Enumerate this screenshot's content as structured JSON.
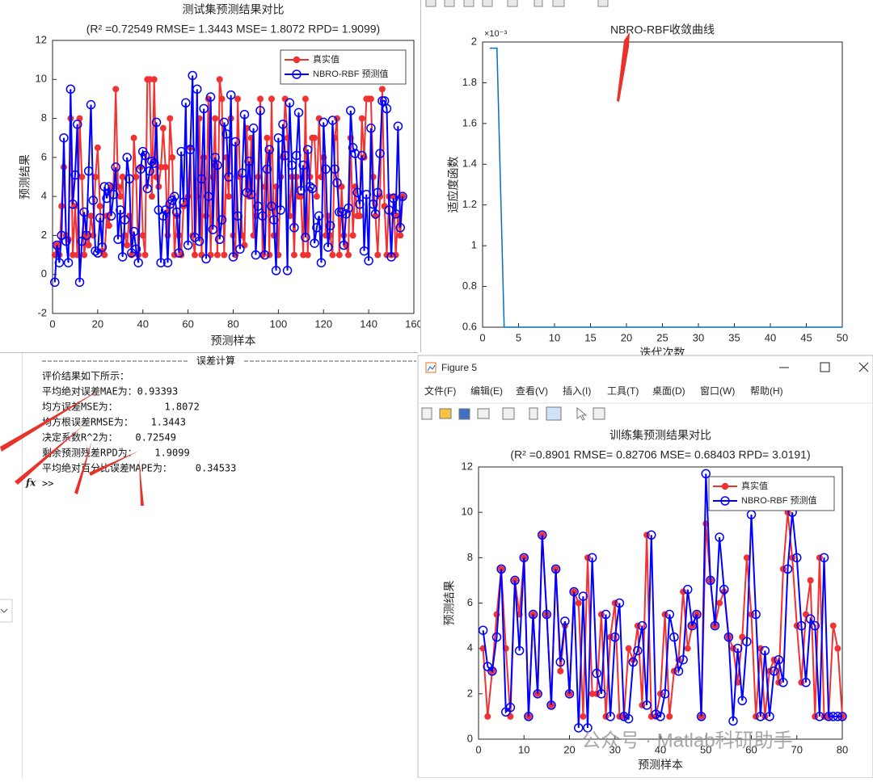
{
  "chart_data": [
    {
      "type": "line",
      "title": "测试集预测结果对比",
      "subtitle": "(R² =0.72549 RMSE= 1.3443 MSE= 1.8072 RPD= 1.9099)",
      "xlabel": "预测样本",
      "ylabel": "预测结果",
      "legend": "northeast",
      "xlim": [
        0,
        160
      ],
      "xticks": [
        0,
        20,
        40,
        60,
        80,
        100,
        120,
        140,
        160
      ],
      "ylim": [
        -2,
        12
      ],
      "yticks": [
        -2,
        0,
        2,
        4,
        6,
        8,
        10,
        12
      ],
      "x": [
        1,
        2,
        3,
        4,
        5,
        6,
        7,
        8,
        9,
        10,
        11,
        12,
        13,
        14,
        15,
        16,
        17,
        18,
        19,
        20,
        21,
        22,
        23,
        24,
        25,
        26,
        27,
        28,
        29,
        30,
        31,
        32,
        33,
        34,
        35,
        36,
        37,
        38,
        39,
        40,
        41,
        42,
        43,
        44,
        45,
        46,
        47,
        48,
        49,
        50,
        51,
        52,
        53,
        54,
        55,
        56,
        57,
        58,
        59,
        60,
        61,
        62,
        63,
        64,
        65,
        66,
        67,
        68,
        69,
        70,
        71,
        72,
        73,
        74,
        75,
        76,
        77,
        78,
        79,
        80,
        81,
        82,
        83,
        84,
        85,
        86,
        87,
        88,
        89,
        90,
        91,
        92,
        93,
        94,
        95,
        96,
        97,
        98,
        99,
        100,
        101,
        102,
        103,
        104,
        105,
        106,
        107,
        108,
        109,
        110,
        111,
        112,
        113,
        114,
        115,
        116,
        117,
        118,
        119,
        120,
        121,
        122,
        123,
        124,
        125,
        126,
        127,
        128,
        129,
        130,
        131,
        132,
        133,
        134,
        135,
        136,
        137,
        138,
        139,
        140,
        141,
        142,
        143,
        144,
        145,
        146,
        147,
        148,
        149,
        150,
        151,
        152,
        153,
        154,
        155
      ],
      "series": [
        {
          "name": "真实值",
          "color": "#f03232",
          "marker": "filled",
          "values": [
            1,
            1.5,
            1,
            3.5,
            5.5,
            2,
            1.8,
            8,
            1,
            3.5,
            1,
            8,
            5,
            1,
            2,
            1.5,
            3,
            2,
            5,
            6.5,
            3.5,
            1.2,
            1,
            3,
            2.5,
            4.5,
            4.5,
            9.5,
            4.5,
            4,
            5,
            2,
            1.5,
            3,
            1,
            7,
            5,
            1,
            5.5,
            2,
            1,
            10,
            10,
            4,
            10,
            5,
            4.5,
            5.5,
            7.5,
            5.5,
            2,
            8,
            6,
            1,
            3,
            2,
            1,
            3.5,
            3.7,
            4,
            6.5,
            2,
            1,
            4,
            8,
            1,
            6,
            3,
            9,
            1,
            5,
            8,
            1,
            10,
            9,
            1,
            6,
            4,
            8,
            2,
            1,
            9,
            5,
            2,
            1.5,
            7.5,
            4,
            7,
            2,
            3,
            5,
            9,
            1,
            4.5,
            7,
            1,
            9,
            2,
            4.5,
            1,
            5,
            6,
            9,
            7,
            3,
            5,
            1,
            5,
            4,
            4,
            1,
            9,
            1,
            5,
            7,
            7,
            4,
            8,
            5,
            6,
            2,
            3,
            2,
            1,
            7,
            8,
            1,
            4.5,
            2,
            1.5,
            1,
            7,
            2,
            4.5,
            3,
            3,
            8,
            6,
            9,
            9,
            9,
            5,
            3,
            1,
            4,
            9.5,
            3.5,
            1,
            4,
            1,
            4,
            1,
            3,
            2,
            4
          ]
        },
        {
          "name": "NBRO-RBF 预测值",
          "color": "#0000ff",
          "marker": "open",
          "values": [
            -0.4,
            1.5,
            0.6,
            2,
            7,
            1.7,
            0.6,
            9.5,
            3.6,
            5.1,
            7.7,
            -0.4,
            1.7,
            3.2,
            2,
            5.3,
            8.7,
            3.8,
            1.2,
            1.1,
            2.9,
            1.4,
            4.5,
            3.9,
            4.5,
            3,
            4.1,
            5.5,
            1.8,
            3.3,
            0.9,
            2.8,
            6,
            4.9,
            1.1,
            2.2,
            1.3,
            0.6,
            5.4,
            6.3,
            6.1,
            4.4,
            5.3,
            5.8,
            5.7,
            7.8,
            3.3,
            0.6,
            3,
            3.3,
            0.6,
            3.6,
            3.8,
            4,
            3.2,
            1.1,
            6.3,
            3.7,
            8.8,
            1.5,
            6.4,
            10.2,
            1.9,
            9.5,
            1.7,
            4.9,
            8.5,
            0.8,
            4,
            9.1,
            2.3,
            6,
            5.6,
            1.8,
            2.8,
            7.8,
            7.2,
            5,
            9.2,
            0.9,
            6.8,
            3,
            1.3,
            5.2,
            8.2,
            4.2,
            5.8,
            4.1,
            7.5,
            1,
            3.5,
            8.4,
            3,
            1,
            5.4,
            6.4,
            3.5,
            2.8,
            0.2,
            7,
            3.3,
            7.7,
            6.1,
            0.2,
            8.8,
            5.6,
            2.4,
            6.1,
            8.3,
            4.3,
            5.6,
            1.9,
            6.4,
            4.5,
            4.4,
            1.6,
            2.4,
            3,
            0.6,
            7.8,
            5.4,
            1.4,
            2.5,
            7.9,
            5.4,
            4.7,
            3.2,
            3.2,
            1.5,
            3.1,
            3.4,
            8.4,
            6.5,
            6.2,
            4.2,
            3.6,
            6.1,
            1.2,
            4.1,
            0.7,
            7.5,
            3.6,
            3.1,
            4.2,
            6.2,
            8.9,
            8.9,
            8.5,
            3.3,
            0.9,
            3.9,
            3.1,
            7.6,
            2.4,
            4
          ]
        }
      ]
    },
    {
      "type": "line",
      "title": "NBRO-RBF收敛曲线",
      "xlabel": "迭代次数",
      "ylabel": "适应度函数",
      "y_exponent": "×10⁻³",
      "xlim": [
        0,
        50
      ],
      "xticks": [
        0,
        5,
        10,
        15,
        20,
        25,
        30,
        35,
        40,
        45,
        50
      ],
      "ylim": [
        0.6,
        2
      ],
      "yticks": [
        0.6,
        0.8,
        1,
        1.2,
        1.4,
        1.6,
        1.8,
        2
      ],
      "x": [
        1,
        2,
        3,
        4,
        5,
        6,
        7,
        8,
        9,
        10,
        11,
        12,
        13,
        14,
        15,
        16,
        17,
        18,
        19,
        20,
        21,
        22,
        23,
        24,
        25,
        26,
        27,
        28,
        29,
        30,
        31,
        32,
        33,
        34,
        35,
        36,
        37,
        38,
        39,
        40,
        41,
        42,
        43,
        44,
        45,
        46,
        47,
        48,
        49,
        50
      ],
      "series": [
        {
          "color": "#0072bd",
          "marker": "none",
          "values": [
            1.97,
            1.97,
            0.6,
            0.6,
            0.6,
            0.6,
            0.6,
            0.6,
            0.6,
            0.6,
            0.6,
            0.6,
            0.6,
            0.6,
            0.6,
            0.6,
            0.6,
            0.6,
            0.6,
            0.6,
            0.6,
            0.6,
            0.6,
            0.6,
            0.6,
            0.6,
            0.6,
            0.6,
            0.6,
            0.6,
            0.6,
            0.6,
            0.6,
            0.6,
            0.6,
            0.6,
            0.6,
            0.6,
            0.6,
            0.6,
            0.6,
            0.6,
            0.6,
            0.6,
            0.6,
            0.6,
            0.6,
            0.6,
            0.6,
            0.6
          ]
        }
      ]
    },
    {
      "type": "line",
      "title": "训练集预测结果对比",
      "subtitle": "(R² =0.8901 RMSE= 0.82706 MSE= 0.68403 RPD= 3.0191)",
      "xlabel": "预测样本",
      "ylabel": "预测结果",
      "legend": "northeast",
      "xlim": [
        0,
        80
      ],
      "xticks": [
        0,
        10,
        20,
        30,
        40,
        50,
        60,
        70,
        80
      ],
      "ylim": [
        0,
        12
      ],
      "yticks": [
        0,
        2,
        4,
        6,
        8,
        10,
        12
      ],
      "x": [
        1,
        2,
        3,
        4,
        5,
        6,
        7,
        8,
        9,
        10,
        11,
        12,
        13,
        14,
        15,
        16,
        17,
        18,
        19,
        20,
        21,
        22,
        23,
        24,
        25,
        26,
        27,
        28,
        29,
        30,
        31,
        32,
        33,
        34,
        35,
        36,
        37,
        38,
        39,
        40,
        41,
        42,
        43,
        44,
        45,
        46,
        47,
        48,
        49,
        50,
        51,
        52,
        53,
        54,
        55,
        56,
        57,
        58,
        59,
        60,
        61,
        62,
        63,
        64,
        65,
        66,
        67,
        68,
        69,
        70,
        71,
        72,
        73,
        74,
        75,
        76,
        77,
        78,
        79,
        80
      ],
      "series": [
        {
          "name": "真实值",
          "color": "#f03232",
          "marker": "filled",
          "values": [
            4,
            1,
            3,
            5.5,
            7.5,
            4,
            1,
            7,
            5.5,
            8,
            1,
            5.5,
            2,
            9,
            5.5,
            1.5,
            7.5,
            3,
            5,
            2,
            6.5,
            6,
            1,
            8,
            2,
            2,
            5.5,
            1,
            4.5,
            6,
            1,
            1,
            4,
            3.5,
            5,
            1.5,
            9,
            1,
            1,
            2,
            5.5,
            1,
            3,
            3.5,
            6.5,
            4,
            5,
            5.5,
            1,
            9.5,
            7,
            5,
            6,
            6.5,
            4.5,
            4,
            2.5,
            4.5,
            8,
            5.5,
            1,
            4,
            1,
            3,
            3.5,
            2.5,
            7.5,
            10,
            8,
            5,
            2.5,
            5.5,
            7,
            1,
            8,
            1,
            1,
            5,
            4,
            1
          ]
        },
        {
          "name": "NBRO-RBF 预测值",
          "color": "#0000ff",
          "marker": "open",
          "values": [
            4.8,
            3.2,
            3,
            4.5,
            7.5,
            1.2,
            1.4,
            7,
            3.9,
            8,
            1,
            5.5,
            2,
            9,
            5.5,
            1.5,
            7.5,
            3.4,
            5.2,
            2,
            6.5,
            0.5,
            6.3,
            0.5,
            8,
            2.9,
            2,
            5.5,
            1,
            4.5,
            6,
            1,
            0.9,
            3.4,
            3.9,
            5,
            1.5,
            9,
            1.1,
            1,
            2,
            5.5,
            4.5,
            3,
            3.5,
            6.6,
            5,
            5.5,
            1,
            11.7,
            7,
            5,
            8.9,
            6.6,
            4.5,
            0.8,
            4,
            1.7,
            4.3,
            9.9,
            5.5,
            1,
            3.9,
            1,
            3,
            3.5,
            2.5,
            7.5,
            10,
            8,
            5,
            2.5,
            5.3,
            5,
            1,
            8,
            1,
            1,
            1,
            1
          ]
        }
      ]
    }
  ],
  "command_window": {
    "header": "误差计算",
    "lines": [
      "评价结果如下所示：",
      "平均绝对误差MAE为：0.93393",
      "均方误差MSE为：        1.8072",
      "均方根误差RMSE为：   1.3443",
      "决定系数R^2为：   0.72549",
      "剩余预测残差RPD为：   1.9099",
      "平均绝对百分比误差MAPE为：    0.34533"
    ],
    "fx": "fx",
    "prompt": ">>"
  },
  "figure_window": {
    "title": "Figure 5",
    "menu": [
      "文件(F)",
      "编辑(E)",
      "查看(V)",
      "插入(I)",
      "工具(T)",
      "桌面(D)",
      "窗口(W)",
      "帮助(H)"
    ]
  },
  "watermark": "公众号 · Matlab科研助手"
}
